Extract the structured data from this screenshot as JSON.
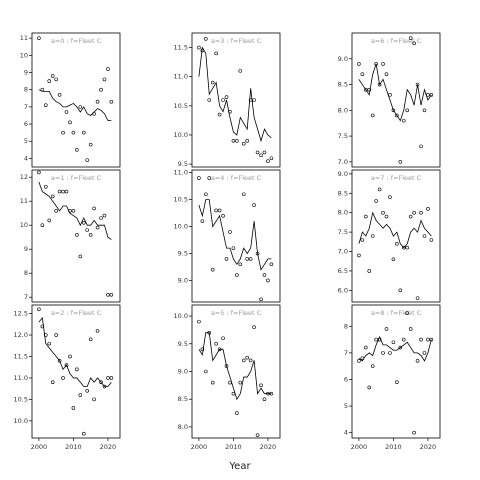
{
  "xlabel": "Year",
  "chart_data": [
    {
      "type": "scatter",
      "title": "a=0 : f=Fleet C",
      "x": [
        2000,
        2001,
        2002,
        2003,
        2004,
        2005,
        2006,
        2007,
        2008,
        2009,
        2010,
        2011,
        2012,
        2013,
        2014,
        2015,
        2016,
        2017,
        2018,
        2019,
        2020,
        2021
      ],
      "values": [
        11.0,
        8.0,
        7.1,
        8.5,
        8.8,
        8.6,
        7.7,
        5.5,
        6.7,
        6.1,
        5.5,
        4.5,
        7.0,
        5.5,
        3.9,
        4.8,
        6.6,
        7.3,
        8.0,
        8.6,
        9.2,
        7.3
      ],
      "trend": [
        8.0,
        7.9,
        7.9,
        7.9,
        7.5,
        7.3,
        7.2,
        7.0,
        7.0,
        7.1,
        7.2,
        7.0,
        6.7,
        7.0,
        6.6,
        6.5,
        6.7,
        6.9,
        6.8,
        6.6,
        6.2,
        6.2
      ],
      "xlim": [
        1998,
        2023.5
      ],
      "ylim": [
        3.5,
        11.3
      ],
      "yticks": [
        4,
        5,
        6,
        7,
        8,
        9,
        10,
        11
      ]
    },
    {
      "type": "scatter",
      "title": "a=3 : f=Fleet C",
      "x": [
        2000,
        2001,
        2002,
        2003,
        2004,
        2005,
        2006,
        2007,
        2008,
        2009,
        2010,
        2011,
        2012,
        2013,
        2014,
        2015,
        2016,
        2017,
        2018,
        2019,
        2020,
        2021
      ],
      "values": [
        11.5,
        11.45,
        11.65,
        10.6,
        10.9,
        11.4,
        10.35,
        10.6,
        10.65,
        10.4,
        9.9,
        9.9,
        11.1,
        9.85,
        9.9,
        10.6,
        10.6,
        9.7,
        9.65,
        9.7,
        9.55,
        9.6
      ],
      "trend": [
        11.0,
        11.5,
        11.4,
        10.7,
        10.8,
        10.9,
        10.5,
        10.4,
        10.6,
        10.3,
        10.05,
        10.0,
        10.3,
        10.2,
        10.1,
        10.8,
        10.3,
        10.1,
        9.9,
        10.1,
        10.0,
        9.95
      ],
      "xlim": [
        1998,
        2023.5
      ],
      "ylim": [
        9.45,
        11.75
      ],
      "yticks": [
        {
          "value": 9.5,
          "label": "9.5"
        },
        {
          "value": 10,
          "label": "10.0"
        },
        10.5,
        {
          "value": 11,
          "label": "11.0"
        },
        11.5
      ]
    },
    {
      "type": "scatter",
      "title": "a=6 : f=Fleet C",
      "x": [
        2000,
        2001,
        2002,
        2003,
        2004,
        2005,
        2006,
        2007,
        2008,
        2009,
        2010,
        2011,
        2012,
        2013,
        2014,
        2015,
        2016,
        2017,
        2018,
        2019,
        2020,
        2021
      ],
      "values": [
        8.9,
        8.7,
        8.4,
        8.4,
        7.9,
        8.9,
        8.5,
        8.9,
        8.7,
        8.3,
        8.0,
        7.9,
        7.0,
        7.8,
        8.0,
        9.4,
        9.3,
        8.5,
        7.3,
        8.0,
        8.3,
        8.3
      ],
      "trend": [
        8.6,
        8.5,
        8.4,
        8.3,
        8.7,
        8.9,
        8.5,
        8.6,
        8.4,
        8.2,
        8.0,
        7.9,
        7.8,
        8.0,
        8.4,
        8.3,
        8.1,
        8.5,
        8.1,
        8.4,
        8.2,
        8.3
      ],
      "xlim": [
        1998,
        2023.5
      ],
      "ylim": [
        6.9,
        9.5
      ],
      "yticks": [
        {
          "value": 7,
          "label": "7.0"
        },
        7.5,
        {
          "value": 8,
          "label": "8.0"
        },
        8.5,
        {
          "value": 9,
          "label": "9.0"
        }
      ]
    },
    {
      "type": "scatter",
      "title": "a=1 : f=Fleet C",
      "x": [
        2000,
        2001,
        2002,
        2003,
        2004,
        2005,
        2006,
        2007,
        2008,
        2009,
        2010,
        2011,
        2012,
        2013,
        2014,
        2015,
        2016,
        2017,
        2018,
        2019,
        2020,
        2021
      ],
      "values": [
        12.2,
        10.0,
        11.6,
        10.2,
        11.2,
        10.6,
        11.4,
        11.4,
        11.4,
        10.6,
        10.6,
        9.6,
        8.7,
        10.1,
        9.8,
        9.6,
        10.7,
        9.9,
        10.3,
        10.4,
        7.1,
        7.1
      ],
      "trend": [
        11.8,
        11.4,
        11.3,
        11.2,
        11.0,
        10.8,
        10.6,
        10.8,
        10.8,
        10.5,
        10.4,
        10.3,
        10.0,
        10.3,
        10.0,
        10.0,
        10.2,
        10.0,
        10.0,
        10.0,
        9.5,
        9.4
      ],
      "xlim": [
        1998,
        2023.5
      ],
      "ylim": [
        6.8,
        12.3
      ],
      "yticks": [
        7,
        8,
        9,
        10,
        11,
        12
      ]
    },
    {
      "type": "scatter",
      "title": "a=4 : f=Fleet C",
      "x": [
        2000,
        2001,
        2002,
        2003,
        2004,
        2005,
        2006,
        2007,
        2008,
        2009,
        2010,
        2011,
        2012,
        2013,
        2014,
        2015,
        2016,
        2017,
        2018,
        2019,
        2020,
        2021
      ],
      "values": [
        10.9,
        10.1,
        10.6,
        10.9,
        9.2,
        10.3,
        10.3,
        10.2,
        9.4,
        9.9,
        9.6,
        9.1,
        9.3,
        10.6,
        9.4,
        9.4,
        10.4,
        9.5,
        8.65,
        9.1,
        9.0,
        9.3
      ],
      "trend": [
        10.4,
        10.2,
        10.5,
        10.5,
        10.0,
        10.1,
        10.2,
        9.9,
        9.6,
        9.6,
        9.4,
        9.3,
        9.4,
        9.6,
        9.5,
        9.6,
        10.1,
        9.5,
        9.2,
        9.3,
        9.4,
        9.4
      ],
      "xlim": [
        1998,
        2023.5
      ],
      "ylim": [
        8.6,
        11.05
      ],
      "yticks": [
        {
          "value": 9,
          "label": "9.0"
        },
        9.5,
        {
          "value": 10,
          "label": "10.0"
        },
        10.5,
        {
          "value": 11,
          "label": "11.0"
        }
      ]
    },
    {
      "type": "scatter",
      "title": "a=7 : f=Fleet C",
      "x": [
        2000,
        2001,
        2002,
        2003,
        2004,
        2005,
        2006,
        2007,
        2008,
        2009,
        2010,
        2011,
        2012,
        2013,
        2014,
        2015,
        2016,
        2017,
        2018,
        2019,
        2020,
        2021
      ],
      "values": [
        6.9,
        7.3,
        7.9,
        6.5,
        7.4,
        8.3,
        8.6,
        8.0,
        7.9,
        8.4,
        6.8,
        7.2,
        6.0,
        7.1,
        7.1,
        7.9,
        8.0,
        5.8,
        8.0,
        7.4,
        8.1,
        7.3
      ],
      "trend": [
        7.2,
        7.5,
        7.4,
        7.6,
        8.0,
        7.8,
        7.7,
        7.6,
        7.7,
        7.6,
        7.4,
        7.5,
        7.2,
        7.1,
        7.2,
        7.5,
        7.6,
        7.5,
        7.8,
        7.6,
        7.5,
        7.4
      ],
      "xlim": [
        1998,
        2023.5
      ],
      "ylim": [
        5.7,
        9.1
      ],
      "yticks": [
        {
          "value": 6,
          "label": "6.0"
        },
        6.5,
        {
          "value": 7,
          "label": "7.0"
        },
        7.5,
        {
          "value": 8,
          "label": "8.0"
        },
        8.5,
        {
          "value": 9,
          "label": "9.0"
        }
      ]
    },
    {
      "type": "scatter",
      "title": "a=2 : f=Fleet C",
      "x": [
        2000,
        2001,
        2002,
        2003,
        2004,
        2005,
        2006,
        2007,
        2008,
        2009,
        2010,
        2011,
        2012,
        2013,
        2014,
        2015,
        2016,
        2017,
        2018,
        2019,
        2020,
        2021
      ],
      "values": [
        12.6,
        12.2,
        12.0,
        11.8,
        10.9,
        12.0,
        11.4,
        11.0,
        11.3,
        11.5,
        10.3,
        11.2,
        10.6,
        9.7,
        10.7,
        11.9,
        10.5,
        12.1,
        10.9,
        10.8,
        11.0,
        11.0
      ],
      "trend": [
        12.3,
        12.4,
        11.8,
        11.7,
        11.6,
        11.5,
        11.4,
        11.2,
        11.3,
        11.1,
        11.0,
        11.0,
        10.9,
        10.8,
        10.8,
        11.0,
        10.9,
        11.0,
        10.9,
        10.8,
        10.8,
        10.9
      ],
      "xlim": [
        1998,
        2023.5
      ],
      "ylim": [
        9.6,
        12.7
      ],
      "yticks": [
        {
          "value": 10,
          "label": "10.0"
        },
        10.5,
        {
          "value": 11,
          "label": "11.0"
        },
        11.5,
        {
          "value": 12,
          "label": "12.0"
        },
        12.5
      ],
      "xticks": [
        2000,
        2010,
        2020
      ]
    },
    {
      "type": "scatter",
      "title": "a=5 : f=Fleet C",
      "x": [
        2000,
        2001,
        2002,
        2003,
        2004,
        2005,
        2006,
        2007,
        2008,
        2009,
        2010,
        2011,
        2012,
        2013,
        2014,
        2015,
        2016,
        2017,
        2018,
        2019,
        2020,
        2021
      ],
      "values": [
        9.9,
        9.4,
        9.0,
        9.7,
        8.8,
        9.5,
        9.4,
        9.6,
        9.1,
        8.8,
        8.6,
        8.25,
        8.8,
        9.2,
        9.25,
        9.2,
        9.8,
        7.85,
        8.75,
        8.5,
        8.6,
        8.6
      ],
      "trend": [
        9.4,
        9.3,
        9.7,
        9.7,
        9.2,
        9.3,
        9.4,
        9.4,
        9.1,
        8.9,
        8.7,
        8.5,
        8.6,
        8.9,
        8.9,
        9.0,
        9.2,
        8.6,
        8.7,
        8.6,
        8.6,
        8.6
      ],
      "xlim": [
        1998,
        2023.5
      ],
      "ylim": [
        7.8,
        10.2
      ],
      "yticks": [
        {
          "value": 8,
          "label": "8.0"
        },
        8.5,
        {
          "value": 9,
          "label": "9.0"
        },
        9.5,
        {
          "value": 10,
          "label": "10.0"
        }
      ],
      "xticks": [
        2000,
        2010,
        2020
      ]
    },
    {
      "type": "scatter",
      "title": "a=8 : f=Fleet C",
      "x": [
        2000,
        2001,
        2002,
        2003,
        2004,
        2005,
        2006,
        2007,
        2008,
        2009,
        2010,
        2011,
        2012,
        2013,
        2014,
        2015,
        2016,
        2017,
        2018,
        2019,
        2020,
        2021
      ],
      "values": [
        6.7,
        6.8,
        7.2,
        5.7,
        6.5,
        7.5,
        7.5,
        7.0,
        7.9,
        7.0,
        7.4,
        5.9,
        7.2,
        7.5,
        8.5,
        7.9,
        4.0,
        6.7,
        7.5,
        7.0,
        7.5,
        7.5
      ],
      "trend": [
        6.8,
        6.7,
        6.9,
        7.0,
        6.9,
        7.3,
        7.6,
        7.3,
        7.3,
        7.2,
        7.1,
        7.1,
        7.2,
        7.3,
        7.4,
        7.2,
        7.0,
        7.0,
        6.9,
        6.7,
        7.0,
        7.5
      ],
      "xlim": [
        1998,
        2023.5
      ],
      "ylim": [
        3.8,
        8.8
      ],
      "yticks": [
        4,
        5,
        6,
        7,
        8
      ],
      "xticks": [
        2000,
        2010,
        2020
      ]
    }
  ]
}
